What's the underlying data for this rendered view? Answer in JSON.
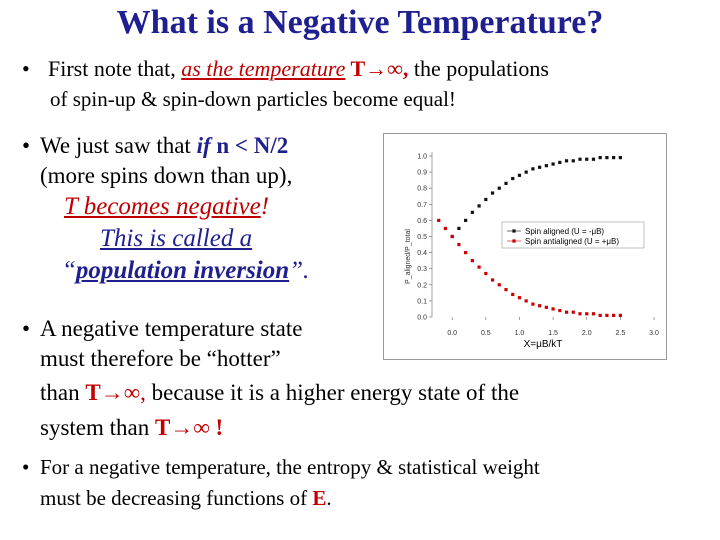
{
  "slide": {
    "title": "What is a Negative Temperature?",
    "b1_prefix": "First note that, ",
    "b1_emph": "as the temperature",
    "b1_T": " T",
    "b1_inf": "∞,",
    "b1_rest": " the populations",
    "b1_line2": "of spin-up & spin-down particles become equal!",
    "b2_l1_a": "We just saw that ",
    "b2_l1_if": "if",
    "b2_l1_cond": " n < N/2",
    "b2_l2": "(more spins down than up),",
    "b2_l3_a": "T becomes negative",
    "b2_l3_b": "!",
    "b2_l4": "This is called a",
    "b2_l5_q1": "“",
    "b2_l5_a": "population inversion",
    "b2_l5_q2": "”.",
    "b3_l1": "A negative temperature state",
    "b3_l2": "must therefore be “hotter”",
    "b3_l3_a": "than ",
    "b3_l3_T": "T",
    "b3_l3_inf": "∞,",
    "b3_l3_rest": "  because it is a higher energy  state of the",
    "b3_l4_a": "system than ",
    "b3_l4_T": "T",
    "b3_l4_inf": "∞ !",
    "b4_l1": "For a negative temperature, the entropy & statistical weight",
    "b4_l2_a": "must be decreasing functions of ",
    "b4_l2_E": "E",
    "b4_l2_b": ".",
    "bullet": "•",
    "arrow": "→"
  },
  "chart_data": {
    "type": "scatter",
    "xlabel": "X=μB/kT",
    "ylabel": "P_aligned/P_total",
    "xlim": [
      -0.3,
      3.0
    ],
    "ylim": [
      0.0,
      1.0
    ],
    "xticks": [
      "0.0",
      "0.5",
      "1.0",
      "1.5",
      "2.0",
      "2.5",
      "3.0"
    ],
    "yticks": [
      "0.0",
      "0.1",
      "0.2",
      "0.3",
      "0.4",
      "0.5",
      "0.6",
      "0.7",
      "0.8",
      "0.9",
      "1.0"
    ],
    "legend_position": "center-right",
    "series": [
      {
        "name": "Spin aligned (U = -μB)",
        "color": "#111111",
        "x": [
          0.0,
          0.1,
          0.2,
          0.3,
          0.4,
          0.5,
          0.6,
          0.7,
          0.8,
          0.9,
          1.0,
          1.1,
          1.2,
          1.3,
          1.4,
          1.5,
          1.6,
          1.7,
          1.8,
          1.9,
          2.0,
          2.1,
          2.2,
          2.3,
          2.4,
          2.5
        ],
        "y": [
          0.5,
          0.55,
          0.6,
          0.65,
          0.69,
          0.73,
          0.77,
          0.8,
          0.83,
          0.86,
          0.88,
          0.9,
          0.92,
          0.93,
          0.94,
          0.95,
          0.96,
          0.97,
          0.97,
          0.98,
          0.98,
          0.98,
          0.99,
          0.99,
          0.99,
          0.99
        ]
      },
      {
        "name": "Spin antialigned (U = +μB)",
        "color": "#cc0000",
        "x": [
          -0.2,
          -0.1,
          0.0,
          0.1,
          0.2,
          0.3,
          0.4,
          0.5,
          0.6,
          0.7,
          0.8,
          0.9,
          1.0,
          1.1,
          1.2,
          1.3,
          1.4,
          1.5,
          1.6,
          1.7,
          1.8,
          1.9,
          2.0,
          2.1,
          2.2,
          2.3,
          2.4,
          2.5
        ],
        "y": [
          0.6,
          0.55,
          0.5,
          0.45,
          0.4,
          0.35,
          0.31,
          0.27,
          0.23,
          0.2,
          0.17,
          0.14,
          0.12,
          0.1,
          0.08,
          0.07,
          0.06,
          0.05,
          0.04,
          0.03,
          0.03,
          0.02,
          0.02,
          0.02,
          0.01,
          0.01,
          0.01,
          0.01
        ]
      }
    ]
  }
}
